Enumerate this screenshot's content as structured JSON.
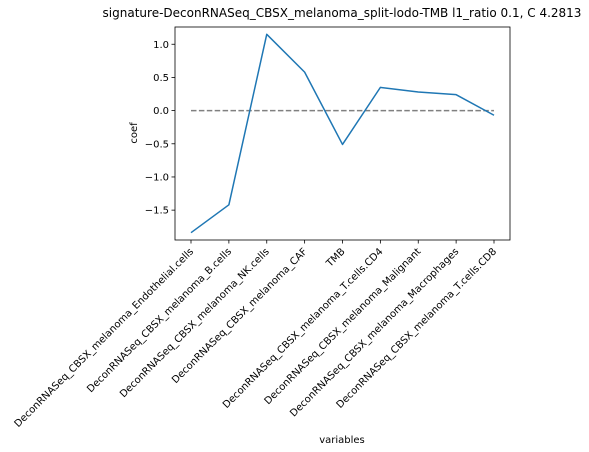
{
  "chart_data": {
    "type": "line",
    "title": "signature-DeconRNASeq_CBSX_melanoma_split-lodo-TMB l1_ratio 0.1, C 4.2813",
    "xlabel": "variables",
    "ylabel": "coef",
    "categories": [
      "DeconRNASeq_CBSX_melanoma_Endothelial.cells",
      "DeconRNASeq_CBSX_melanoma_B.cells",
      "DeconRNASeq_CBSX_melanoma_NK.cells",
      "DeconRNASeq_CBSX_melanoma_CAF",
      "TMB",
      "DeconRNASeq_CBSX_melanoma_T.cells.CD4",
      "DeconRNASeq_CBSX_melanoma_Malignant",
      "DeconRNASeq_CBSX_melanoma_Macrophages",
      "DeconRNASeq_CBSX_melanoma_T.cells.CD8"
    ],
    "series": [
      {
        "values": [
          -1.84,
          -1.42,
          1.15,
          0.58,
          -0.51,
          0.35,
          0.28,
          0.24,
          -0.07
        ]
      }
    ],
    "reference_line": {
      "y": 0.0,
      "style": "dashed",
      "color": "#808080"
    },
    "ylim": [
      -1.95,
      1.26
    ],
    "yticks": [
      -1.5,
      -1.0,
      -0.5,
      0.0,
      0.5,
      1.0
    ],
    "ytick_labels": [
      "−1.5",
      "−1.0",
      "−0.5",
      "0.0",
      "0.5",
      "1.0"
    ],
    "grid": false,
    "line_color": "#1f77b4"
  }
}
